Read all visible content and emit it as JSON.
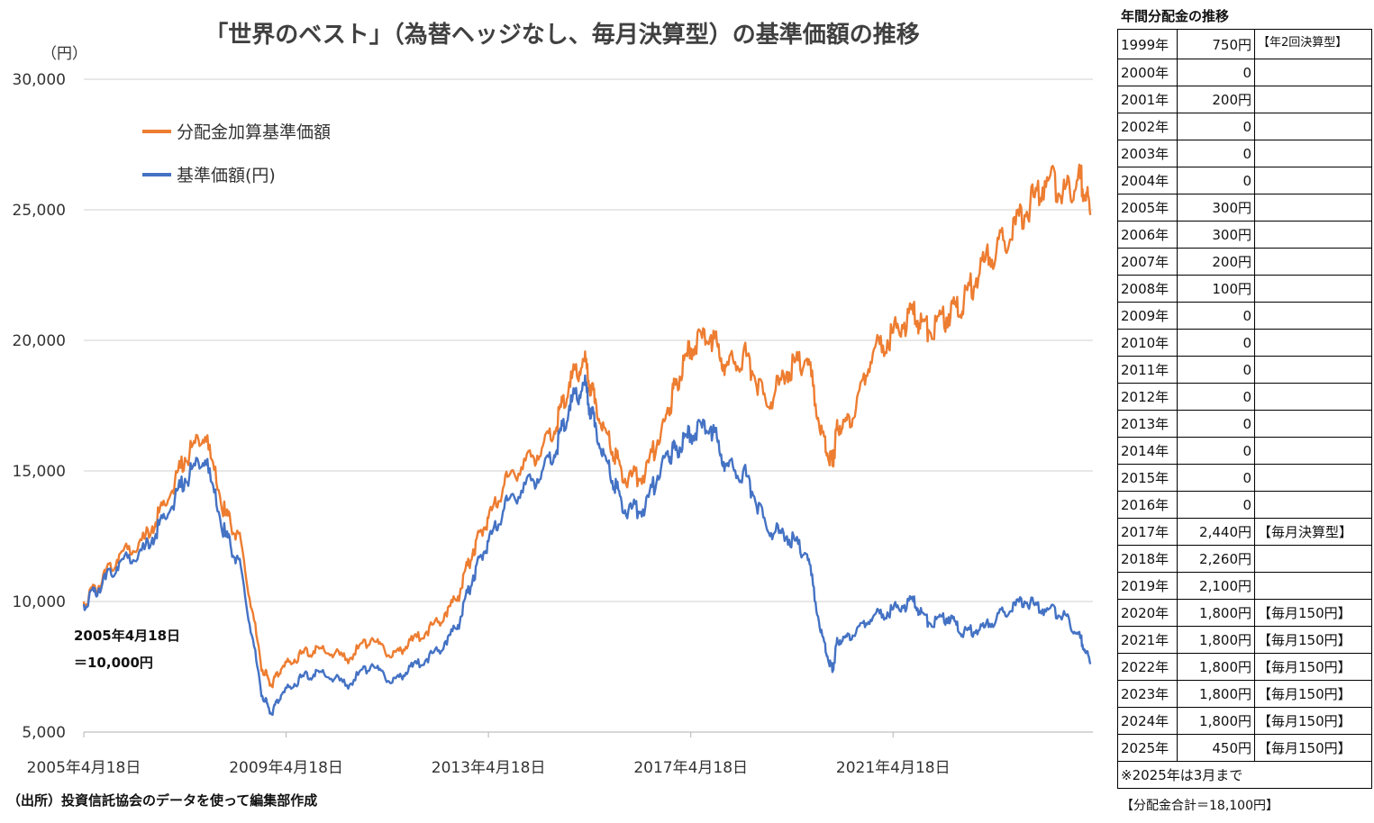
{
  "chart_data": {
    "type": "line",
    "title": "「世界のベスト」（為替ヘッジなし、毎月決算型）の基準価額の推移",
    "ylabel": "（円）",
    "ylim": [
      5000,
      30000
    ],
    "yticks": [
      "30,000",
      "25,000",
      "20,000",
      "15,000",
      "10,000",
      "5,000"
    ],
    "ytick_values": [
      30000,
      25000,
      20000,
      15000,
      10000,
      5000
    ],
    "xticks": [
      "2005年4月18日",
      "2009年4月18日",
      "2013年4月18日",
      "2017年4月18日",
      "2021年4月18日"
    ],
    "xtick_values": [
      2005.3,
      2009.3,
      2013.3,
      2017.3,
      2021.3
    ],
    "xlim": [
      2005.3,
      2025.25
    ],
    "grid": true,
    "legend_position": "top-left",
    "annotation": [
      "2005年4月18日",
      "＝10,000円"
    ],
    "series": [
      {
        "name": "分配金加算基準価額",
        "color": "#ED7D31",
        "x": [
          2005.3,
          2005.6,
          2006.0,
          2006.5,
          2006.9,
          2007.3,
          2007.7,
          2008.1,
          2008.4,
          2008.8,
          2009.0,
          2009.2,
          2009.6,
          2010.0,
          2010.5,
          2011.0,
          2011.4,
          2011.8,
          2012.3,
          2012.7,
          2013.0,
          2013.3,
          2013.7,
          2014.2,
          2014.6,
          2014.9,
          2015.2,
          2015.4,
          2015.7,
          2016.0,
          2016.4,
          2016.8,
          2017.0,
          2017.3,
          2017.7,
          2018.0,
          2018.4,
          2018.8,
          2019.2,
          2019.6,
          2019.9,
          2020.1,
          2020.2,
          2020.5,
          2020.9,
          2021.3,
          2021.7,
          2022.0,
          2022.4,
          2022.7,
          2023.1,
          2023.5,
          2023.9,
          2024.3,
          2024.7,
          2025.0,
          2025.2
        ],
        "y": [
          10000,
          10600,
          11800,
          12400,
          13700,
          15500,
          16300,
          13300,
          12400,
          7600,
          6800,
          7400,
          8000,
          8200,
          7800,
          8600,
          7900,
          8500,
          9200,
          10200,
          12000,
          13200,
          14800,
          15500,
          16500,
          18400,
          19200,
          17600,
          16000,
          14700,
          14900,
          17000,
          18300,
          19700,
          20200,
          19000,
          19400,
          17500,
          18800,
          19300,
          16500,
          15200,
          16700,
          17000,
          19500,
          20300,
          21000,
          20400,
          21000,
          21500,
          23000,
          23800,
          24800,
          26100,
          25800,
          26200,
          24800
        ]
      },
      {
        "name": "基準価額(円)",
        "color": "#4472C4",
        "x": [
          2005.3,
          2005.6,
          2006.0,
          2006.5,
          2006.9,
          2007.3,
          2007.7,
          2008.1,
          2008.4,
          2008.8,
          2009.0,
          2009.2,
          2009.6,
          2010.0,
          2010.5,
          2011.0,
          2011.4,
          2011.8,
          2012.3,
          2012.7,
          2013.0,
          2013.3,
          2013.7,
          2014.2,
          2014.6,
          2014.9,
          2015.2,
          2015.4,
          2015.7,
          2016.0,
          2016.4,
          2016.8,
          2017.0,
          2017.3,
          2017.7,
          2018.0,
          2018.4,
          2018.8,
          2019.2,
          2019.6,
          2019.9,
          2020.1,
          2020.2,
          2020.5,
          2020.9,
          2021.3,
          2021.7,
          2022.0,
          2022.4,
          2022.7,
          2023.1,
          2023.5,
          2023.9,
          2024.3,
          2024.7,
          2025.0,
          2025.2
        ],
        "y": [
          9900,
          10500,
          11500,
          12000,
          13200,
          14700,
          15400,
          12500,
          11400,
          6600,
          5700,
          6400,
          7100,
          7300,
          6800,
          7600,
          6900,
          7500,
          8100,
          9100,
          11000,
          12300,
          13900,
          14600,
          15600,
          17500,
          18300,
          16700,
          14900,
          13500,
          13600,
          15600,
          15800,
          16400,
          16700,
          15200,
          14800,
          12800,
          12500,
          11800,
          8700,
          7300,
          8500,
          8700,
          9400,
          9700,
          10000,
          9200,
          9400,
          8800,
          9000,
          9600,
          10000,
          9700,
          9500,
          8600,
          7600
        ]
      }
    ]
  },
  "distribution_table": {
    "title": "年間分配金の推移",
    "rows": [
      {
        "year": "1999年",
        "amount": "750円",
        "note": "【年2回決算型】"
      },
      {
        "year": "2000年",
        "amount": "0",
        "note": ""
      },
      {
        "year": "2001年",
        "amount": "200円",
        "note": ""
      },
      {
        "year": "2002年",
        "amount": "0",
        "note": ""
      },
      {
        "year": "2003年",
        "amount": "0",
        "note": ""
      },
      {
        "year": "2004年",
        "amount": "0",
        "note": ""
      },
      {
        "year": "2005年",
        "amount": "300円",
        "note": ""
      },
      {
        "year": "2006年",
        "amount": "300円",
        "note": ""
      },
      {
        "year": "2007年",
        "amount": "200円",
        "note": ""
      },
      {
        "year": "2008年",
        "amount": "100円",
        "note": ""
      },
      {
        "year": "2009年",
        "amount": "0",
        "note": ""
      },
      {
        "year": "2010年",
        "amount": "0",
        "note": ""
      },
      {
        "year": "2011年",
        "amount": "0",
        "note": ""
      },
      {
        "year": "2012年",
        "amount": "0",
        "note": ""
      },
      {
        "year": "2013年",
        "amount": "0",
        "note": ""
      },
      {
        "year": "2014年",
        "amount": "0",
        "note": ""
      },
      {
        "year": "2015年",
        "amount": "0",
        "note": ""
      },
      {
        "year": "2016年",
        "amount": "0",
        "note": ""
      },
      {
        "year": "2017年",
        "amount": "2,440円",
        "note": "【毎月決算型】"
      },
      {
        "year": "2018年",
        "amount": "2,260円",
        "note": ""
      },
      {
        "year": "2019年",
        "amount": "2,100円",
        "note": ""
      },
      {
        "year": "2020年",
        "amount": "1,800円",
        "note": "【毎月150円】"
      },
      {
        "year": "2021年",
        "amount": "1,800円",
        "note": "【毎月150円】"
      },
      {
        "year": "2022年",
        "amount": "1,800円",
        "note": "【毎月150円】"
      },
      {
        "year": "2023年",
        "amount": "1,800円",
        "note": "【毎月150円】"
      },
      {
        "year": "2024年",
        "amount": "1,800円",
        "note": "【毎月150円】"
      },
      {
        "year": "2025年",
        "amount": "450円",
        "note": "【毎月150円】"
      }
    ],
    "footnote": "※2025年は3月まで",
    "total": "【分配金合計＝18,100円】"
  },
  "source_note": "（出所）投資信託協会のデータを使って編集部作成"
}
